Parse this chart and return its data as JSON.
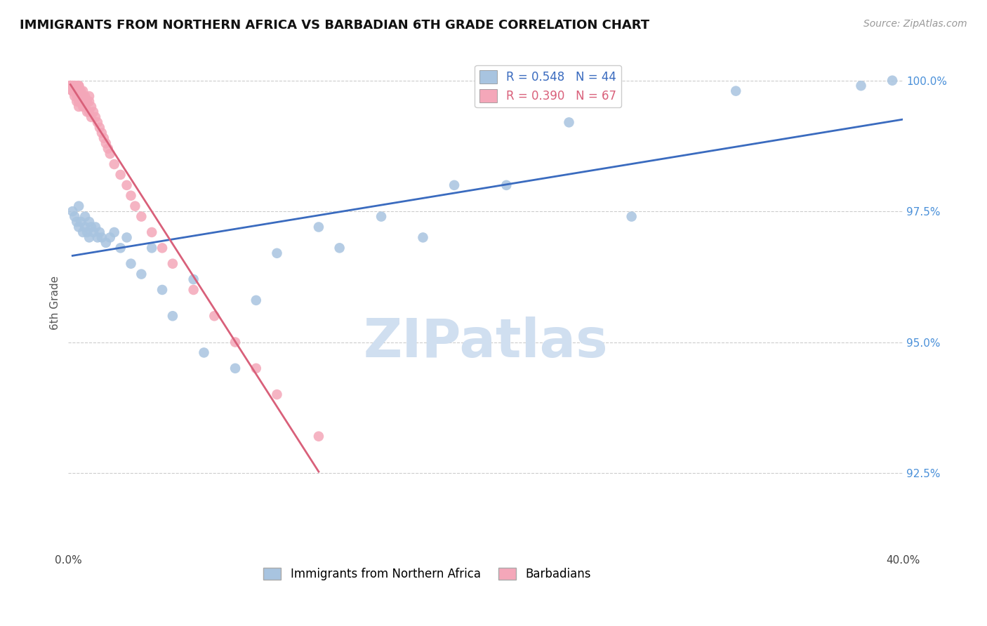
{
  "title": "IMMIGRANTS FROM NORTHERN AFRICA VS BARBADIAN 6TH GRADE CORRELATION CHART",
  "source": "Source: ZipAtlas.com",
  "ylabel": "6th Grade",
  "xlim": [
    0.0,
    0.4
  ],
  "ylim": [
    0.91,
    1.005
  ],
  "xtick_positions": [
    0.0,
    0.1,
    0.2,
    0.3,
    0.4
  ],
  "xtick_labels": [
    "0.0%",
    "",
    "",
    "",
    "40.0%"
  ],
  "ytick_positions": [
    0.925,
    0.95,
    0.975,
    1.0
  ],
  "ytick_labels": [
    "92.5%",
    "95.0%",
    "97.5%",
    "100.0%"
  ],
  "blue_r": 0.548,
  "blue_n": 44,
  "pink_r": 0.39,
  "pink_n": 67,
  "blue_color": "#a8c4e0",
  "pink_color": "#f4a7b9",
  "blue_line_color": "#3a6bbf",
  "pink_line_color": "#d9607a",
  "watermark_color": "#d0dff0",
  "background_color": "#ffffff",
  "grid_color": "#cccccc",
  "blue_scatter_x": [
    0.002,
    0.003,
    0.004,
    0.005,
    0.005,
    0.006,
    0.007,
    0.008,
    0.008,
    0.009,
    0.01,
    0.01,
    0.011,
    0.012,
    0.013,
    0.014,
    0.015,
    0.016,
    0.018,
    0.02,
    0.022,
    0.025,
    0.028,
    0.03,
    0.035,
    0.04,
    0.045,
    0.05,
    0.06,
    0.065,
    0.08,
    0.09,
    0.1,
    0.12,
    0.13,
    0.15,
    0.17,
    0.185,
    0.21,
    0.24,
    0.27,
    0.32,
    0.38,
    0.395
  ],
  "blue_scatter_y": [
    0.975,
    0.974,
    0.973,
    0.972,
    0.976,
    0.973,
    0.971,
    0.972,
    0.974,
    0.971,
    0.97,
    0.973,
    0.972,
    0.971,
    0.972,
    0.97,
    0.971,
    0.97,
    0.969,
    0.97,
    0.971,
    0.968,
    0.97,
    0.965,
    0.963,
    0.968,
    0.96,
    0.955,
    0.962,
    0.948,
    0.945,
    0.958,
    0.967,
    0.972,
    0.968,
    0.974,
    0.97,
    0.98,
    0.98,
    0.992,
    0.974,
    0.998,
    0.999,
    1.0
  ],
  "pink_scatter_x": [
    0.001,
    0.001,
    0.001,
    0.001,
    0.001,
    0.002,
    0.002,
    0.002,
    0.002,
    0.002,
    0.002,
    0.003,
    0.003,
    0.003,
    0.003,
    0.003,
    0.004,
    0.004,
    0.004,
    0.004,
    0.005,
    0.005,
    0.005,
    0.005,
    0.005,
    0.005,
    0.006,
    0.006,
    0.006,
    0.007,
    0.007,
    0.007,
    0.007,
    0.008,
    0.008,
    0.008,
    0.009,
    0.009,
    0.01,
    0.01,
    0.01,
    0.011,
    0.011,
    0.012,
    0.013,
    0.014,
    0.015,
    0.016,
    0.017,
    0.018,
    0.019,
    0.02,
    0.022,
    0.025,
    0.028,
    0.03,
    0.032,
    0.035,
    0.04,
    0.045,
    0.05,
    0.06,
    0.07,
    0.08,
    0.09,
    0.1,
    0.12
  ],
  "pink_scatter_y": [
    0.999,
    0.999,
    0.999,
    0.999,
    0.999,
    0.999,
    0.999,
    0.999,
    0.998,
    0.998,
    0.998,
    0.999,
    0.999,
    0.998,
    0.998,
    0.997,
    0.999,
    0.998,
    0.997,
    0.996,
    0.999,
    0.999,
    0.998,
    0.997,
    0.996,
    0.995,
    0.998,
    0.997,
    0.996,
    0.998,
    0.997,
    0.996,
    0.995,
    0.997,
    0.996,
    0.995,
    0.996,
    0.994,
    0.997,
    0.996,
    0.994,
    0.995,
    0.993,
    0.994,
    0.993,
    0.992,
    0.991,
    0.99,
    0.989,
    0.988,
    0.987,
    0.986,
    0.984,
    0.982,
    0.98,
    0.978,
    0.976,
    0.974,
    0.971,
    0.968,
    0.965,
    0.96,
    0.955,
    0.95,
    0.945,
    0.94,
    0.932
  ]
}
